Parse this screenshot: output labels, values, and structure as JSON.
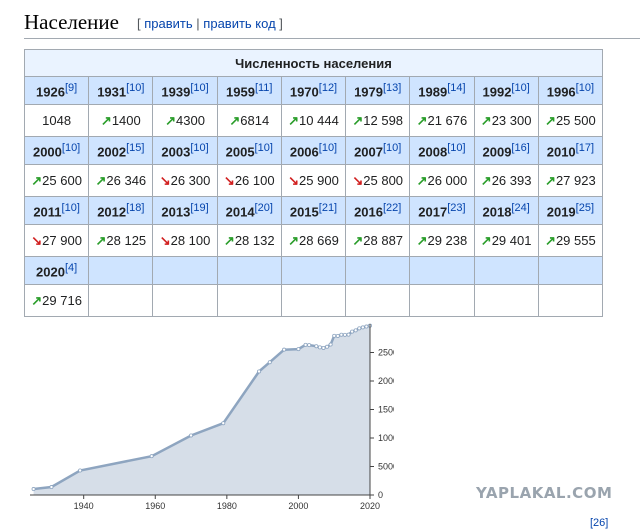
{
  "heading": {
    "title": "Население",
    "open_bracket": "[",
    "edit": "править",
    "separator": "|",
    "edit_code": "править код",
    "close_bracket": "]"
  },
  "table": {
    "caption": "Численность населения",
    "rows": [
      {
        "years": [
          [
            "1926",
            "[9]"
          ],
          [
            "1931",
            "[10]"
          ],
          [
            "1939",
            "[10]"
          ],
          [
            "1959",
            "[11]"
          ],
          [
            "1970",
            "[12]"
          ],
          [
            "1979",
            "[13]"
          ],
          [
            "1989",
            "[14]"
          ],
          [
            "1992",
            "[10]"
          ],
          [
            "1996",
            "[10]"
          ]
        ],
        "values": [
          [
            "",
            "1048"
          ],
          [
            "up",
            "1400"
          ],
          [
            "up",
            "4300"
          ],
          [
            "up",
            "6814"
          ],
          [
            "up",
            "10 444"
          ],
          [
            "up",
            "12 598"
          ],
          [
            "up",
            "21 676"
          ],
          [
            "up",
            "23 300"
          ],
          [
            "up",
            "25 500"
          ]
        ]
      },
      {
        "years": [
          [
            "2000",
            "[10]"
          ],
          [
            "2002",
            "[15]"
          ],
          [
            "2003",
            "[10]"
          ],
          [
            "2005",
            "[10]"
          ],
          [
            "2006",
            "[10]"
          ],
          [
            "2007",
            "[10]"
          ],
          [
            "2008",
            "[10]"
          ],
          [
            "2009",
            "[16]"
          ],
          [
            "2010",
            "[17]"
          ]
        ],
        "values": [
          [
            "up",
            "25 600"
          ],
          [
            "up",
            "26 346"
          ],
          [
            "down",
            "26 300"
          ],
          [
            "down",
            "26 100"
          ],
          [
            "down",
            "25 900"
          ],
          [
            "down",
            "25 800"
          ],
          [
            "up",
            "26 000"
          ],
          [
            "up",
            "26 393"
          ],
          [
            "up",
            "27 923"
          ]
        ]
      },
      {
        "years": [
          [
            "2011",
            "[10]"
          ],
          [
            "2012",
            "[18]"
          ],
          [
            "2013",
            "[19]"
          ],
          [
            "2014",
            "[20]"
          ],
          [
            "2015",
            "[21]"
          ],
          [
            "2016",
            "[22]"
          ],
          [
            "2017",
            "[23]"
          ],
          [
            "2018",
            "[24]"
          ],
          [
            "2019",
            "[25]"
          ]
        ],
        "values": [
          [
            "down",
            "27 900"
          ],
          [
            "up",
            "28 125"
          ],
          [
            "down",
            "28 100"
          ],
          [
            "up",
            "28 132"
          ],
          [
            "up",
            "28 669"
          ],
          [
            "up",
            "28 887"
          ],
          [
            "up",
            "29 238"
          ],
          [
            "up",
            "29 401"
          ],
          [
            "up",
            "29 555"
          ]
        ]
      },
      {
        "years": [
          [
            "2020",
            "[4]"
          ],
          [
            "",
            ""
          ],
          [
            "",
            ""
          ],
          [
            "",
            ""
          ],
          [
            "",
            ""
          ],
          [
            "",
            ""
          ],
          [
            "",
            ""
          ],
          [
            "",
            ""
          ],
          [
            "",
            ""
          ]
        ],
        "values": [
          [
            "up",
            "29 716"
          ],
          [
            "",
            ""
          ],
          [
            "",
            ""
          ],
          [
            "",
            ""
          ],
          [
            "",
            ""
          ],
          [
            "",
            ""
          ],
          [
            "",
            ""
          ],
          [
            "",
            ""
          ],
          [
            "",
            ""
          ]
        ]
      }
    ]
  },
  "chart_data": {
    "type": "area",
    "x": [
      1926,
      1931,
      1939,
      1959,
      1970,
      1979,
      1989,
      1992,
      1996,
      2000,
      2002,
      2003,
      2005,
      2006,
      2007,
      2008,
      2009,
      2010,
      2011,
      2012,
      2013,
      2014,
      2015,
      2016,
      2017,
      2018,
      2019,
      2020
    ],
    "values": [
      1048,
      1400,
      4300,
      6814,
      10444,
      12598,
      21676,
      23300,
      25500,
      25600,
      26346,
      26300,
      26100,
      25900,
      25800,
      26000,
      26393,
      27923,
      27900,
      28125,
      28100,
      28132,
      28669,
      28887,
      29238,
      29401,
      29555,
      29716
    ],
    "xlim": [
      1925,
      2020
    ],
    "ylim": [
      0,
      30000
    ],
    "x_ticks": [
      1940,
      1960,
      1980,
      2000,
      2020
    ],
    "y_ticks": [
      0,
      5000,
      10000,
      15000,
      20000,
      25000
    ],
    "y_tick_labels": [
      "0",
      "5000",
      "10000",
      "15000",
      "20000",
      "25000"
    ],
    "title": "",
    "xlabel": "",
    "ylabel": "",
    "fill_color": "#d6dee8",
    "line_color": "#8ea5c0",
    "grid": false
  },
  "watermark": "YAPLAKAL.COM",
  "clipped_ref": "[26]",
  "colors": {
    "up": "#2a9d2a",
    "down": "#d12020",
    "link": "#0645ad",
    "header_bg": "#cfe4ff"
  }
}
